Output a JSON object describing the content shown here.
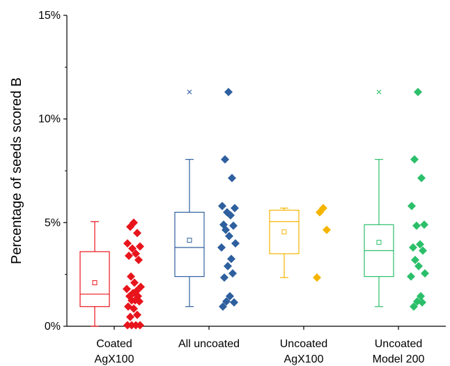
{
  "chart_data": {
    "type": "box",
    "ylabel": "Percentage of seeds scored B",
    "ylim": [
      0,
      15
    ],
    "y_ticks": [
      "0%",
      "5%",
      "10%",
      "15%"
    ],
    "y_tick_values": [
      0,
      5,
      10,
      15
    ],
    "grid": false,
    "legend": "none",
    "categories": [
      {
        "line1": "Coated",
        "line2": "AgX100"
      },
      {
        "line1": "All uncoated",
        "line2": ""
      },
      {
        "line1": "Uncoated",
        "line2": "AgX100"
      },
      {
        "line1": "Uncoated",
        "line2": "Model 200"
      }
    ],
    "series": [
      {
        "color": "#e8141c",
        "box": {
          "whisker_low": 0.0,
          "q1": 0.95,
          "median": 1.55,
          "q3": 3.6,
          "whisker_high": 5.05,
          "mean": 2.1,
          "outliers": []
        },
        "points": [
          5.0,
          4.8,
          4.5,
          4.0,
          3.85,
          3.75,
          3.5,
          3.4,
          3.2,
          2.4,
          2.1,
          1.9,
          1.8,
          1.7,
          1.6,
          1.45,
          1.45,
          1.25,
          1.25,
          1.2,
          0.95,
          0.85,
          0.55,
          0.45,
          0.05,
          0.05,
          0.05,
          0.05
        ]
      },
      {
        "color": "#2e5f9e",
        "box": {
          "whisker_low": 0.95,
          "q1": 2.4,
          "median": 3.8,
          "q3": 5.5,
          "whisker_high": 8.05,
          "mean": 4.15,
          "outliers": [
            11.3
          ]
        },
        "points": [
          11.3,
          8.05,
          7.15,
          5.8,
          5.7,
          5.5,
          5.35,
          4.9,
          4.85,
          4.65,
          4.35,
          4.0,
          3.8,
          3.25,
          2.9,
          2.55,
          2.35,
          1.45,
          1.2,
          1.15,
          0.95
        ]
      },
      {
        "color": "#f5b400",
        "box": {
          "whisker_low": 2.35,
          "q1": 3.5,
          "median": 5.05,
          "q3": 5.6,
          "whisker_high": 5.7,
          "mean": 4.55,
          "outliers": []
        },
        "points": [
          5.7,
          5.5,
          4.65,
          2.35
        ]
      },
      {
        "color": "#2bbf6a",
        "box": {
          "whisker_low": 0.95,
          "q1": 2.4,
          "median": 3.65,
          "q3": 4.9,
          "whisker_high": 8.05,
          "mean": 4.05,
          "outliers": [
            11.3
          ]
        },
        "points": [
          11.3,
          8.05,
          7.15,
          5.8,
          4.9,
          4.85,
          3.95,
          3.8,
          3.65,
          3.2,
          2.9,
          2.55,
          2.4,
          1.45,
          1.2,
          1.15,
          0.95
        ]
      }
    ]
  }
}
